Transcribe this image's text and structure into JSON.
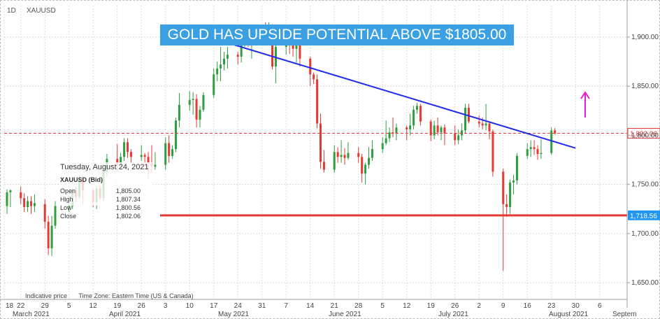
{
  "header": {
    "interval": "1D",
    "symbol": "XAUUSD"
  },
  "headline": "GOLD HAS UPSIDE POTENTIAL ABOVE $1805.00",
  "ohlc_panel": {
    "date": "Tuesday, August 24, 2021",
    "symbol_label": "XAUUSD (Bid)",
    "rows": [
      {
        "label": "Open",
        "value": "1,805.00"
      },
      {
        "label": "High",
        "value": "1,807.34"
      },
      {
        "label": "Low",
        "value": "1,800.56"
      },
      {
        "label": "Close",
        "value": "1,802.06"
      }
    ]
  },
  "footer": {
    "indicative": "Indicative price",
    "timezone": "Time Zone: Eastern Time (US & Canada)"
  },
  "chart_data": {
    "type": "candlestick",
    "ylim": [
      1633,
      1932
    ],
    "y_ticks": [
      {
        "label": "1,900.00",
        "value": 1900
      },
      {
        "label": "1,850.00",
        "value": 1850
      },
      {
        "label": "1,800.00",
        "value": 1800
      },
      {
        "label": "1,750.00",
        "value": 1750
      },
      {
        "label": "1,700.00",
        "value": 1700
      },
      {
        "label": "1,650.00",
        "value": 1650
      }
    ],
    "x_ticks": [
      "18",
      "22",
      "29",
      "5",
      "12",
      "19",
      "26",
      "3",
      "10",
      "17",
      "24",
      "31",
      "7",
      "14",
      "21",
      "28",
      "5",
      "12",
      "19",
      "26",
      "2",
      "9",
      "16",
      "23",
      "30",
      "6"
    ],
    "month_labels": [
      "March 2021",
      "April 2021",
      "May 2021",
      "June 2021",
      "July 2021",
      "August 2021",
      "Septem"
    ],
    "current_price": {
      "label": "1,802.06",
      "value": 1802.06,
      "color": "#e53935"
    },
    "support": {
      "label": "1,718.56",
      "value": 1718.56,
      "color": "#e53935",
      "label_color": "#2196f3"
    },
    "trendline": {
      "from": [
        "May 6, 2021",
        1910
      ],
      "to": [
        "Aug 30, 2021",
        1787
      ],
      "color": "#1f2ee6"
    },
    "arrow": {
      "color": "#e91ec8",
      "direction": "up"
    },
    "up_color": "#2e9e3e",
    "down_color": "#e53935",
    "candles": [
      {
        "d": "Mar 18",
        "o": 1728,
        "h": 1745,
        "l": 1720,
        "c": 1742
      },
      {
        "d": "Mar 19",
        "o": 1742,
        "h": 1745,
        "l": 1727,
        "c": 1744
      },
      {
        "d": "Mar 22",
        "o": 1742,
        "h": 1748,
        "l": 1730,
        "c": 1736
      },
      {
        "d": "Mar 23",
        "o": 1736,
        "h": 1741,
        "l": 1722,
        "c": 1727
      },
      {
        "d": "Mar 24",
        "o": 1727,
        "h": 1738,
        "l": 1722,
        "c": 1733
      },
      {
        "d": "Mar 25",
        "o": 1733,
        "h": 1738,
        "l": 1720,
        "c": 1728
      },
      {
        "d": "Mar 26",
        "o": 1728,
        "h": 1740,
        "l": 1722,
        "c": 1731
      },
      {
        "d": "Mar 29",
        "o": 1730,
        "h": 1735,
        "l": 1705,
        "c": 1712
      },
      {
        "d": "Mar 30",
        "o": 1712,
        "h": 1718,
        "l": 1678,
        "c": 1685
      },
      {
        "d": "Mar 31",
        "o": 1685,
        "h": 1718,
        "l": 1677,
        "c": 1708
      },
      {
        "d": "Apr 1",
        "o": 1708,
        "h": 1733,
        "l": 1705,
        "c": 1728
      },
      {
        "d": "Apr 5",
        "o": 1728,
        "h": 1741,
        "l": 1722,
        "c": 1728
      },
      {
        "d": "Apr 6",
        "o": 1728,
        "h": 1746,
        "l": 1725,
        "c": 1744
      },
      {
        "d": "Apr 7",
        "o": 1744,
        "h": 1748,
        "l": 1732,
        "c": 1737
      },
      {
        "d": "Apr 8",
        "o": 1737,
        "h": 1759,
        "l": 1735,
        "c": 1756
      },
      {
        "d": "Apr 9",
        "o": 1756,
        "h": 1758,
        "l": 1730,
        "c": 1744
      },
      {
        "d": "Apr 12",
        "o": 1744,
        "h": 1746,
        "l": 1727,
        "c": 1732
      },
      {
        "d": "Apr 13",
        "o": 1732,
        "h": 1749,
        "l": 1725,
        "c": 1746
      },
      {
        "d": "Apr 14",
        "o": 1746,
        "h": 1749,
        "l": 1734,
        "c": 1736
      },
      {
        "d": "Apr 15",
        "o": 1736,
        "h": 1766,
        "l": 1733,
        "c": 1763
      },
      {
        "d": "Apr 16",
        "o": 1763,
        "h": 1781,
        "l": 1758,
        "c": 1776
      },
      {
        "d": "Apr 19",
        "o": 1776,
        "h": 1791,
        "l": 1764,
        "c": 1770
      },
      {
        "d": "Apr 20",
        "o": 1770,
        "h": 1782,
        "l": 1767,
        "c": 1778
      },
      {
        "d": "Apr 21",
        "o": 1778,
        "h": 1797,
        "l": 1774,
        "c": 1793
      },
      {
        "d": "Apr 22",
        "o": 1793,
        "h": 1797,
        "l": 1777,
        "c": 1783
      },
      {
        "d": "Apr 23",
        "o": 1783,
        "h": 1786,
        "l": 1771,
        "c": 1778
      },
      {
        "d": "Apr 26",
        "o": 1778,
        "h": 1790,
        "l": 1774,
        "c": 1780
      },
      {
        "d": "Apr 27",
        "o": 1780,
        "h": 1782,
        "l": 1768,
        "c": 1778
      },
      {
        "d": "Apr 28",
        "o": 1778,
        "h": 1783,
        "l": 1756,
        "c": 1772
      },
      {
        "d": "Apr 29",
        "o": 1772,
        "h": 1790,
        "l": 1762,
        "c": 1768
      },
      {
        "d": "Apr 30",
        "o": 1768,
        "h": 1783,
        "l": 1765,
        "c": 1770
      },
      {
        "d": "May 3",
        "o": 1770,
        "h": 1798,
        "l": 1765,
        "c": 1792
      },
      {
        "d": "May 4",
        "o": 1792,
        "h": 1800,
        "l": 1772,
        "c": 1779
      },
      {
        "d": "May 5",
        "o": 1779,
        "h": 1790,
        "l": 1776,
        "c": 1786
      },
      {
        "d": "May 6",
        "o": 1786,
        "h": 1818,
        "l": 1783,
        "c": 1815
      },
      {
        "d": "May 7",
        "o": 1815,
        "h": 1843,
        "l": 1808,
        "c": 1831
      },
      {
        "d": "May 10",
        "o": 1831,
        "h": 1845,
        "l": 1825,
        "c": 1836
      },
      {
        "d": "May 11",
        "o": 1836,
        "h": 1844,
        "l": 1821,
        "c": 1837
      },
      {
        "d": "May 12",
        "o": 1837,
        "h": 1842,
        "l": 1808,
        "c": 1816
      },
      {
        "d": "May 13",
        "o": 1816,
        "h": 1830,
        "l": 1808,
        "c": 1826
      },
      {
        "d": "May 14",
        "o": 1826,
        "h": 1844,
        "l": 1824,
        "c": 1841
      },
      {
        "d": "May 17",
        "o": 1841,
        "h": 1868,
        "l": 1838,
        "c": 1862
      },
      {
        "d": "May 18",
        "o": 1862,
        "h": 1875,
        "l": 1855,
        "c": 1868
      },
      {
        "d": "May 19",
        "o": 1868,
        "h": 1890,
        "l": 1855,
        "c": 1872
      },
      {
        "d": "May 20",
        "o": 1872,
        "h": 1885,
        "l": 1866,
        "c": 1878
      },
      {
        "d": "May 21",
        "o": 1878,
        "h": 1890,
        "l": 1868,
        "c": 1882
      },
      {
        "d": "May 24",
        "o": 1882,
        "h": 1885,
        "l": 1872,
        "c": 1880
      },
      {
        "d": "May 25",
        "o": 1880,
        "h": 1900,
        "l": 1874,
        "c": 1897
      },
      {
        "d": "May 26",
        "o": 1897,
        "h": 1912,
        "l": 1890,
        "c": 1902
      },
      {
        "d": "May 27",
        "o": 1902,
        "h": 1910,
        "l": 1890,
        "c": 1895
      },
      {
        "d": "May 28",
        "o": 1895,
        "h": 1910,
        "l": 1878,
        "c": 1905
      },
      {
        "d": "May 31",
        "o": 1905,
        "h": 1910,
        "l": 1900,
        "c": 1905
      },
      {
        "d": "Jun 1",
        "o": 1905,
        "h": 1915,
        "l": 1897,
        "c": 1902
      },
      {
        "d": "Jun 2",
        "o": 1902,
        "h": 1915,
        "l": 1896,
        "c": 1908
      },
      {
        "d": "Jun 3",
        "o": 1908,
        "h": 1913,
        "l": 1867,
        "c": 1870
      },
      {
        "d": "Jun 4",
        "o": 1870,
        "h": 1893,
        "l": 1853,
        "c": 1890
      },
      {
        "d": "Jun 7",
        "o": 1890,
        "h": 1903,
        "l": 1882,
        "c": 1898
      },
      {
        "d": "Jun 8",
        "o": 1898,
        "h": 1904,
        "l": 1883,
        "c": 1892
      },
      {
        "d": "Jun 9",
        "o": 1892,
        "h": 1905,
        "l": 1880,
        "c": 1888
      },
      {
        "d": "Jun 10",
        "o": 1888,
        "h": 1903,
        "l": 1874,
        "c": 1895
      },
      {
        "d": "Jun 11",
        "o": 1895,
        "h": 1906,
        "l": 1870,
        "c": 1878
      },
      {
        "d": "Jun 14",
        "o": 1878,
        "h": 1880,
        "l": 1850,
        "c": 1862
      },
      {
        "d": "Jun 15",
        "o": 1862,
        "h": 1864,
        "l": 1852,
        "c": 1857
      },
      {
        "d": "Jun 16",
        "o": 1857,
        "h": 1862,
        "l": 1807,
        "c": 1812
      },
      {
        "d": "Jun 17",
        "o": 1812,
        "h": 1822,
        "l": 1766,
        "c": 1773
      },
      {
        "d": "Jun 18",
        "o": 1773,
        "h": 1785,
        "l": 1762,
        "c": 1765
      },
      {
        "d": "Jun 21",
        "o": 1765,
        "h": 1790,
        "l": 1762,
        "c": 1783
      },
      {
        "d": "Jun 22",
        "o": 1783,
        "h": 1788,
        "l": 1772,
        "c": 1778
      },
      {
        "d": "Jun 23",
        "o": 1778,
        "h": 1795,
        "l": 1772,
        "c": 1780
      },
      {
        "d": "Jun 24",
        "o": 1780,
        "h": 1787,
        "l": 1770,
        "c": 1777
      },
      {
        "d": "Jun 25",
        "o": 1777,
        "h": 1793,
        "l": 1775,
        "c": 1782
      },
      {
        "d": "Jun 28",
        "o": 1782,
        "h": 1788,
        "l": 1772,
        "c": 1778
      },
      {
        "d": "Jun 29",
        "o": 1778,
        "h": 1781,
        "l": 1752,
        "c": 1761
      },
      {
        "d": "Jun 30",
        "o": 1761,
        "h": 1772,
        "l": 1750,
        "c": 1770
      },
      {
        "d": "Jul 1",
        "o": 1770,
        "h": 1788,
        "l": 1766,
        "c": 1777
      },
      {
        "d": "Jul 2",
        "o": 1777,
        "h": 1795,
        "l": 1774,
        "c": 1786
      },
      {
        "d": "Jul 5",
        "o": 1786,
        "h": 1798,
        "l": 1782,
        "c": 1792
      },
      {
        "d": "Jul 6",
        "o": 1792,
        "h": 1815,
        "l": 1790,
        "c": 1797
      },
      {
        "d": "Jul 7",
        "o": 1797,
        "h": 1808,
        "l": 1793,
        "c": 1803
      },
      {
        "d": "Jul 8",
        "o": 1803,
        "h": 1818,
        "l": 1798,
        "c": 1802
      },
      {
        "d": "Jul 9",
        "o": 1802,
        "h": 1812,
        "l": 1795,
        "c": 1808
      },
      {
        "d": "Jul 12",
        "o": 1808,
        "h": 1810,
        "l": 1795,
        "c": 1806
      },
      {
        "d": "Jul 13",
        "o": 1806,
        "h": 1822,
        "l": 1800,
        "c": 1810
      },
      {
        "d": "Jul 14",
        "o": 1810,
        "h": 1830,
        "l": 1806,
        "c": 1826
      },
      {
        "d": "Jul 15",
        "o": 1826,
        "h": 1833,
        "l": 1822,
        "c": 1830
      },
      {
        "d": "Jul 16",
        "o": 1830,
        "h": 1832,
        "l": 1810,
        "c": 1814
      },
      {
        "d": "Jul 19",
        "o": 1814,
        "h": 1816,
        "l": 1794,
        "c": 1800
      },
      {
        "d": "Jul 20",
        "o": 1800,
        "h": 1815,
        "l": 1796,
        "c": 1810
      },
      {
        "d": "Jul 21",
        "o": 1810,
        "h": 1818,
        "l": 1800,
        "c": 1803
      },
      {
        "d": "Jul 22",
        "o": 1803,
        "h": 1810,
        "l": 1795,
        "c": 1808
      },
      {
        "d": "Jul 23",
        "o": 1808,
        "h": 1811,
        "l": 1790,
        "c": 1802
      },
      {
        "d": "Jul 26",
        "o": 1802,
        "h": 1810,
        "l": 1790,
        "c": 1795
      },
      {
        "d": "Jul 27",
        "o": 1795,
        "h": 1806,
        "l": 1791,
        "c": 1800
      },
      {
        "d": "Jul 28",
        "o": 1800,
        "h": 1812,
        "l": 1795,
        "c": 1805
      },
      {
        "d": "Jul 29",
        "o": 1805,
        "h": 1832,
        "l": 1802,
        "c": 1828
      },
      {
        "d": "Jul 30",
        "o": 1828,
        "h": 1832,
        "l": 1812,
        "c": 1814
      },
      {
        "d": "Aug 2",
        "o": 1814,
        "h": 1820,
        "l": 1808,
        "c": 1812
      },
      {
        "d": "Aug 3",
        "o": 1812,
        "h": 1818,
        "l": 1806,
        "c": 1810
      },
      {
        "d": "Aug 4",
        "o": 1810,
        "h": 1832,
        "l": 1805,
        "c": 1812
      },
      {
        "d": "Aug 5",
        "o": 1812,
        "h": 1814,
        "l": 1796,
        "c": 1804
      },
      {
        "d": "Aug 6",
        "o": 1804,
        "h": 1806,
        "l": 1758,
        "c": 1763
      },
      {
        "d": "Aug 9",
        "o": 1763,
        "h": 1766,
        "l": 1662,
        "c": 1730
      },
      {
        "d": "Aug 10",
        "o": 1730,
        "h": 1740,
        "l": 1717,
        "c": 1727
      },
      {
        "d": "Aug 11",
        "o": 1727,
        "h": 1755,
        "l": 1720,
        "c": 1752
      },
      {
        "d": "Aug 12",
        "o": 1752,
        "h": 1760,
        "l": 1740,
        "c": 1754
      },
      {
        "d": "Aug 13",
        "o": 1754,
        "h": 1782,
        "l": 1750,
        "c": 1779
      },
      {
        "d": "Aug 16",
        "o": 1779,
        "h": 1792,
        "l": 1776,
        "c": 1786
      },
      {
        "d": "Aug 17",
        "o": 1786,
        "h": 1795,
        "l": 1778,
        "c": 1788
      },
      {
        "d": "Aug 18",
        "o": 1788,
        "h": 1795,
        "l": 1780,
        "c": 1786
      },
      {
        "d": "Aug 19",
        "o": 1786,
        "h": 1790,
        "l": 1775,
        "c": 1781
      },
      {
        "d": "Aug 20",
        "o": 1781,
        "h": 1796,
        "l": 1776,
        "c": 1782
      },
      {
        "d": "Aug 23",
        "o": 1782,
        "h": 1808,
        "l": 1780,
        "c": 1805
      },
      {
        "d": "Aug 24",
        "o": 1805.0,
        "h": 1807.34,
        "l": 1800.56,
        "c": 1802.06
      }
    ]
  }
}
